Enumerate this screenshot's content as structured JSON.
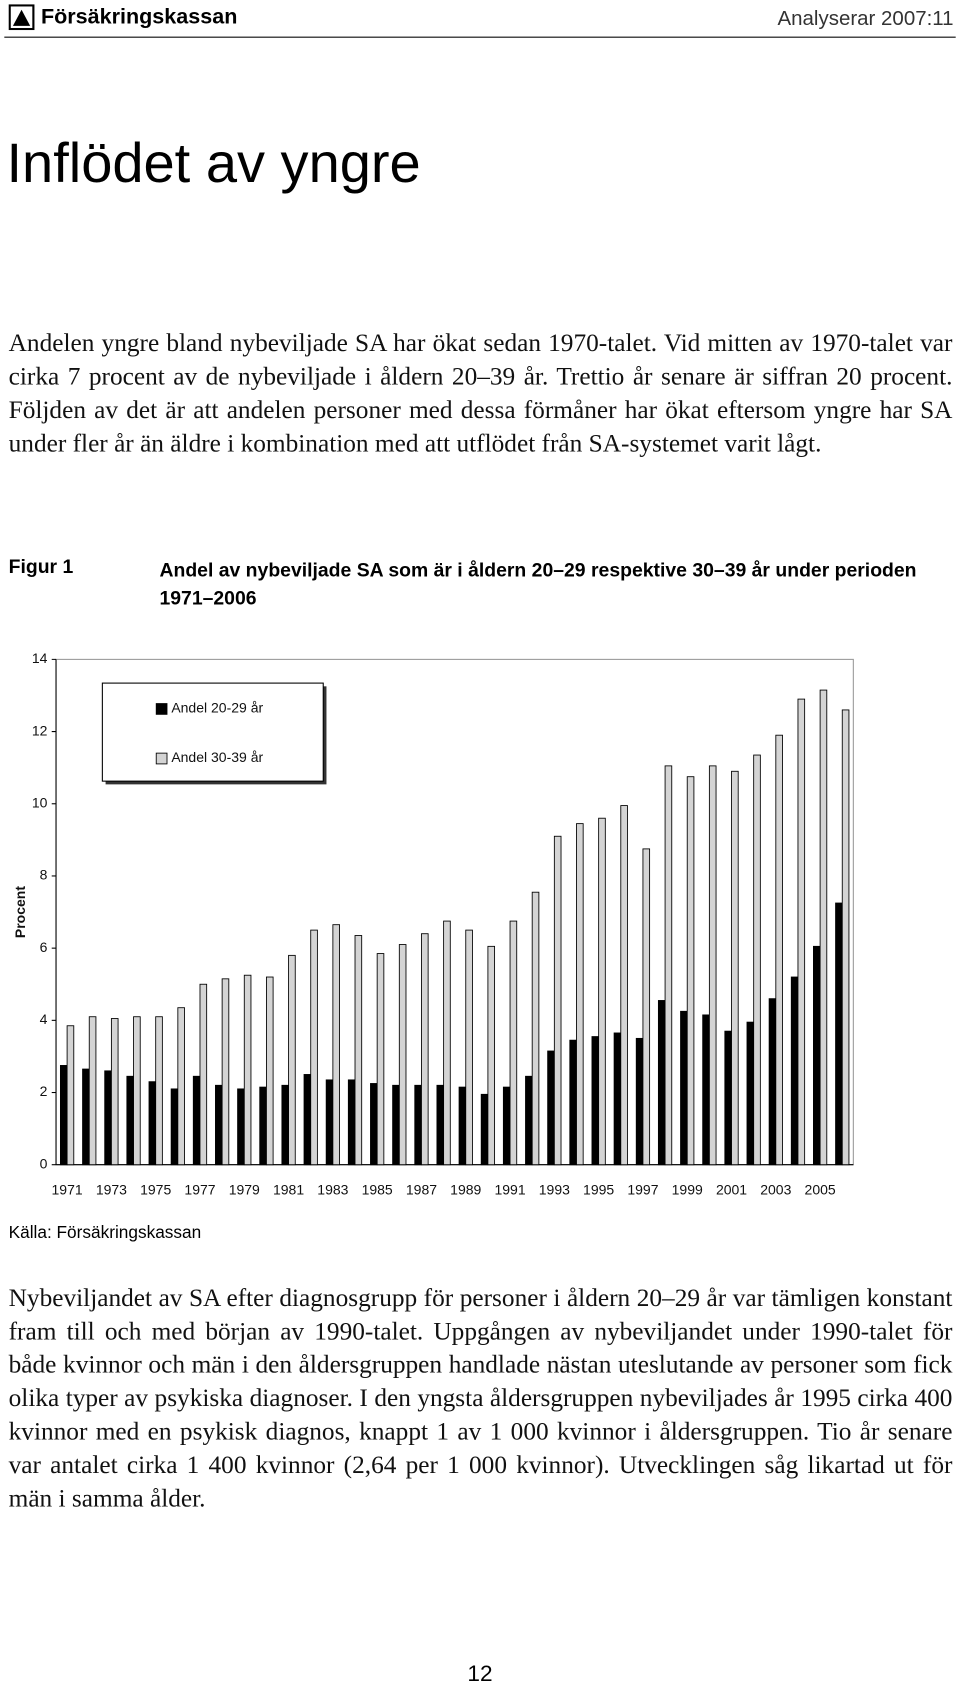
{
  "header": {
    "brand": "Försäkringskassan",
    "right": "Analyserar 2007:11"
  },
  "title": "Inflödet av yngre",
  "paragraphs": [
    "Andelen yngre bland nybeviljade SA har ökat sedan 1970-talet. Vid mitten av 1970-talet var cirka 7 procent av de nybeviljade i åldern 20–39 år. Trettio år senare är siffran 20 procent. Följden av det är att andelen personer med dessa förmåner har ökat eftersom yngre har SA under fler år än äldre i kombination med att utflödet från SA-systemet varit lågt.",
    "Nybeviljandet av SA efter diagnosgrupp för personer i åldern 20–29 år var tämligen konstant fram till och med början av 1990-talet. Uppgången av nybeviljandet under 1990-talet för både kvinnor och män i den åldersgruppen handlade nästan uteslutande av personer som fick olika typer av psykiska diagnoser. I den yngsta åldersgruppen nybeviljades år 1995 cirka 400 kvinnor med en psykisk diagnos, knappt 1 av 1 000 kvinnor i åldersgruppen. Tio år senare var antalet cirka 1 400 kvinnor (2,64 per 1 000 kvinnor). Utvecklingen såg likartad ut för män i samma ålder."
  ],
  "figure": {
    "label": "Figur 1",
    "source": "Källa: Försäkringskassan"
  },
  "page_number": "12",
  "chart_data": {
    "type": "bar",
    "title": "Andel av nybeviljade SA som är i åldern 20–29 respektive 30–39 år under perioden 1971–2006",
    "y_label": "Procent",
    "categories": [
      "1971",
      null,
      "1973",
      null,
      "1975",
      null,
      "1977",
      null,
      "1979",
      null,
      "1981",
      null,
      "1983",
      null,
      "1985",
      null,
      "1987",
      null,
      "1989",
      null,
      "1991",
      null,
      "1993",
      null,
      "1995",
      null,
      "1997",
      null,
      "1999",
      null,
      "2001",
      null,
      "2003",
      null,
      "2005",
      null
    ],
    "series": [
      {
        "name": "Andel 20-29 år",
        "color": "#000000",
        "values": [
          2.75,
          2.65,
          2.6,
          2.45,
          2.3,
          2.1,
          2.45,
          2.2,
          2.1,
          2.15,
          2.2,
          2.5,
          2.35,
          2.35,
          2.25,
          2.2,
          2.2,
          2.2,
          2.15,
          1.95,
          2.15,
          2.45,
          3.15,
          3.45,
          3.55,
          3.65,
          3.5,
          4.55,
          4.25,
          4.15,
          3.7,
          3.95,
          4.6,
          5.2,
          6.05,
          7.25
        ]
      },
      {
        "name": "Andel 30-39 år",
        "color": "#d4d4d4",
        "values": [
          3.85,
          4.1,
          4.05,
          4.1,
          4.1,
          4.35,
          5.0,
          5.15,
          5.25,
          5.2,
          5.8,
          6.5,
          6.65,
          6.35,
          5.85,
          6.1,
          6.4,
          6.75,
          6.5,
          6.05,
          6.75,
          7.55,
          9.1,
          9.45,
          9.6,
          9.95,
          8.75,
          11.05,
          10.75,
          11.05,
          10.9,
          11.35,
          11.9,
          12.9,
          13.15,
          12.6
        ]
      }
    ],
    "ylim": [
      0,
      14
    ],
    "yticks": [
      0,
      2,
      4,
      6,
      8,
      10,
      12,
      14
    ],
    "grid": false,
    "legend": "upper left"
  }
}
